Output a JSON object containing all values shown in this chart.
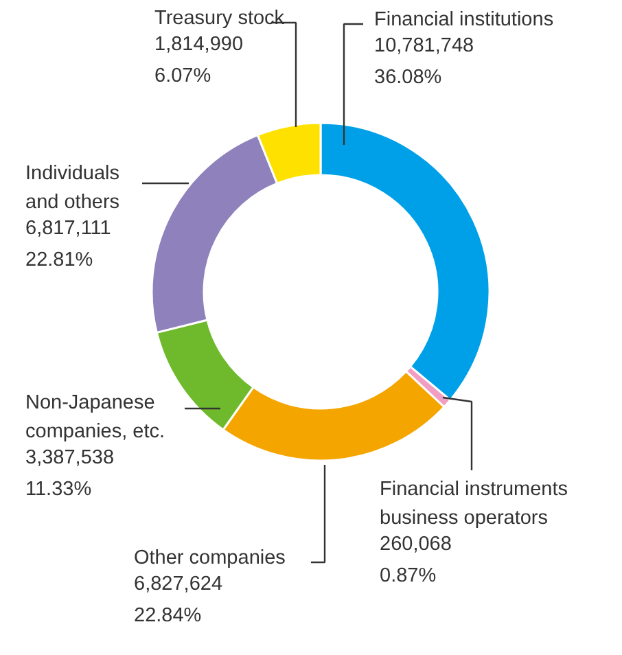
{
  "chart_data": {
    "type": "donut",
    "categories": [
      "Financial institutions",
      "Financial instruments\nbusiness operators",
      "Other companies",
      "Non-Japanese\ncompanies, etc.",
      "Individuals\nand others",
      "Treasury stock"
    ],
    "values": [
      10781748,
      260068,
      6827624,
      3387538,
      6817111,
      1814990
    ],
    "colors": [
      "#00a0e9",
      "#f19ec2",
      "#f5a500",
      "#6fba2c",
      "#8f82bc",
      "#ffe100"
    ],
    "value_labels": [
      "10,781,748\n36.08%",
      "260,068\n0.87%",
      "6,827,624\n22.84%",
      "3,387,538\n11.33%",
      "6,817,111\n22.81%",
      "1,814,990\n6.07%"
    ]
  }
}
